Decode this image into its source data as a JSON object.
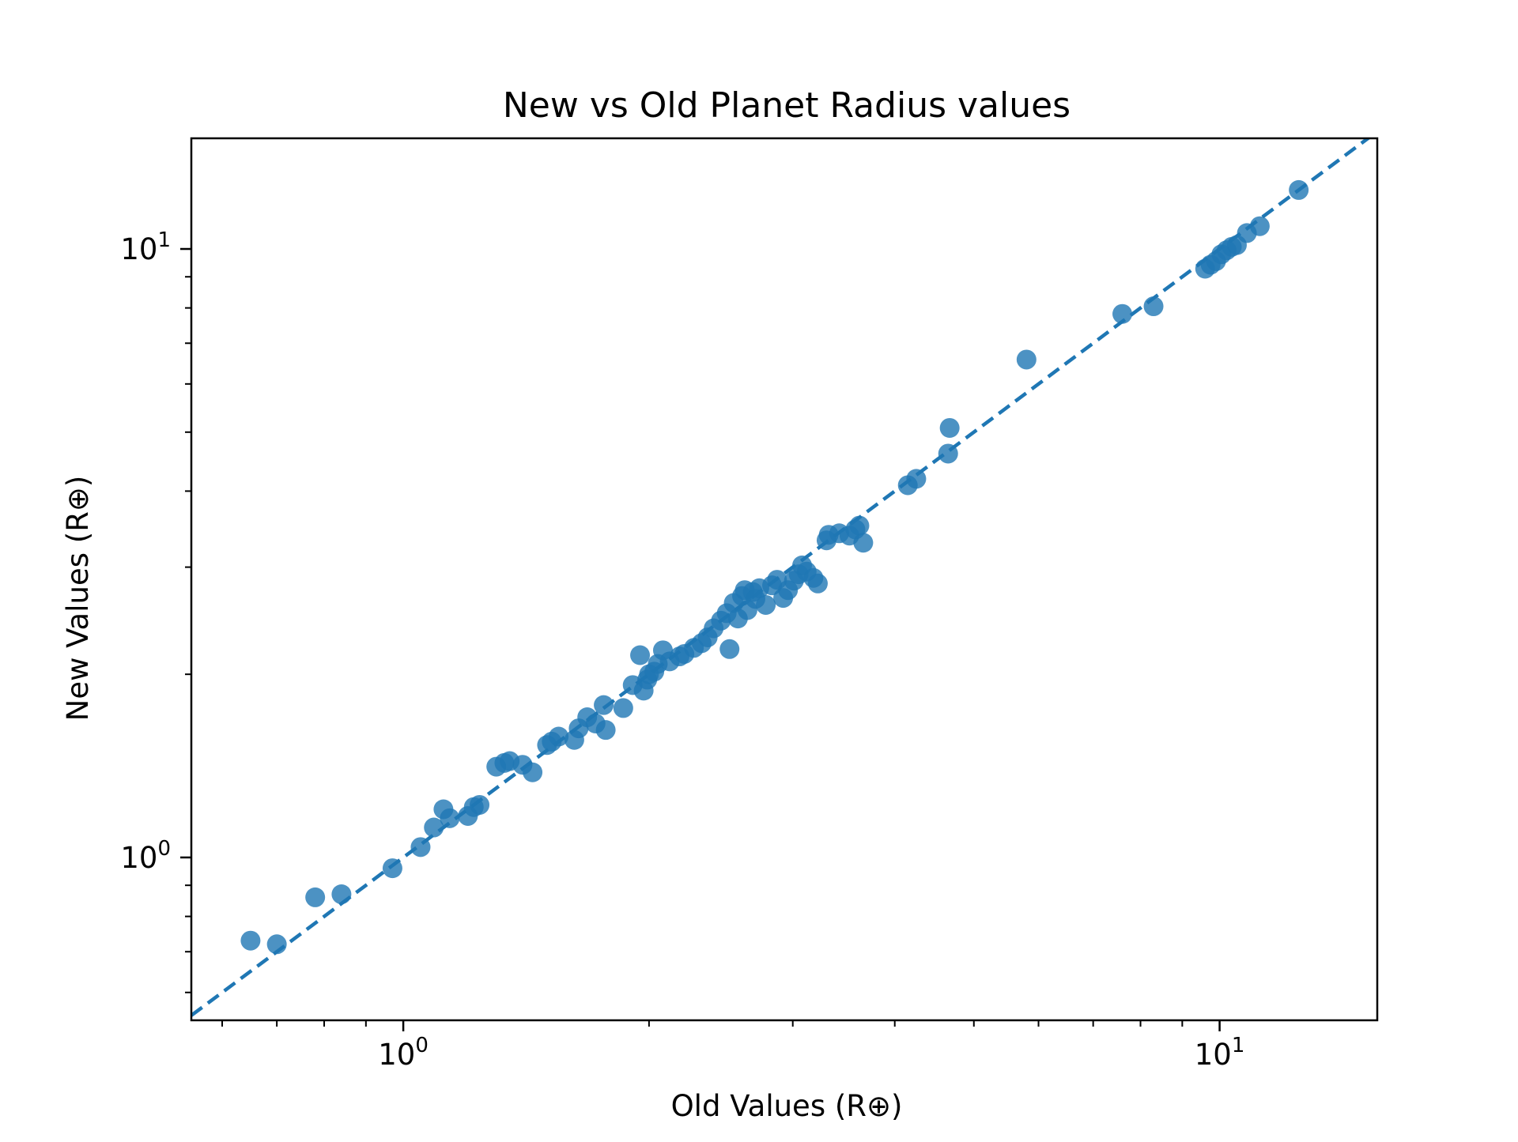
{
  "chart_data": {
    "type": "scatter",
    "title": "New vs Old Planet Radius values",
    "xlabel": "Old Values (R⊕)",
    "ylabel": "New Values (R⊕)",
    "xscale": "log",
    "yscale": "log",
    "xlim": [
      0.55,
      15.6
    ],
    "ylim": [
      0.54,
      15.2
    ],
    "xticks": [
      {
        "value": 1,
        "base": "10",
        "exp": "0"
      },
      {
        "value": 10,
        "base": "10",
        "exp": "1"
      }
    ],
    "yticks": [
      {
        "value": 1,
        "base": "10",
        "exp": "0"
      },
      {
        "value": 10,
        "base": "10",
        "exp": "1"
      }
    ],
    "grid": false,
    "colors": {
      "points": "#1f77b4",
      "reference_line": "#1f77b4"
    },
    "reference_line": {
      "style": "dashed",
      "slope": 1,
      "x": [
        0.55,
        15.6
      ]
    },
    "series": [
      {
        "x": [
          0.65,
          0.7,
          0.78,
          0.84,
          0.97,
          1.05,
          1.09,
          1.12,
          1.14,
          1.2,
          1.22,
          1.24,
          1.3,
          1.33,
          1.35,
          1.4,
          1.44,
          1.5,
          1.52,
          1.55,
          1.62,
          1.64,
          1.68,
          1.72,
          1.76,
          1.77,
          1.86,
          1.91,
          1.95,
          1.97,
          1.99,
          2.0,
          2.03,
          2.05,
          2.08,
          2.12,
          2.18,
          2.21,
          2.27,
          2.32,
          2.36,
          2.4,
          2.45,
          2.49,
          2.51,
          2.54,
          2.57,
          2.6,
          2.62,
          2.64,
          2.68,
          2.7,
          2.73,
          2.78,
          2.83,
          2.87,
          2.92,
          2.96,
          3.01,
          3.05,
          3.08,
          3.12,
          3.18,
          3.22,
          3.3,
          3.32,
          3.42,
          3.52,
          3.58,
          3.62,
          3.66,
          4.15,
          4.25,
          4.65,
          4.67,
          5.8,
          7.6,
          8.3,
          9.6,
          9.75,
          9.9,
          10.05,
          10.2,
          10.35,
          10.5,
          10.8,
          11.2,
          12.5
        ],
        "y": [
          0.73,
          0.72,
          0.86,
          0.87,
          0.96,
          1.04,
          1.12,
          1.2,
          1.16,
          1.17,
          1.21,
          1.22,
          1.41,
          1.43,
          1.44,
          1.42,
          1.38,
          1.53,
          1.55,
          1.58,
          1.56,
          1.63,
          1.7,
          1.66,
          1.78,
          1.62,
          1.76,
          1.92,
          2.15,
          1.88,
          1.96,
          2.0,
          2.02,
          2.08,
          2.19,
          2.1,
          2.14,
          2.16,
          2.21,
          2.25,
          2.3,
          2.38,
          2.45,
          2.52,
          2.2,
          2.62,
          2.47,
          2.69,
          2.75,
          2.55,
          2.73,
          2.66,
          2.77,
          2.6,
          2.8,
          2.86,
          2.67,
          2.75,
          2.85,
          2.92,
          3.02,
          2.95,
          2.88,
          2.82,
          3.32,
          3.39,
          3.41,
          3.38,
          3.46,
          3.51,
          3.29,
          4.09,
          4.19,
          4.61,
          5.08,
          6.58,
          7.82,
          8.05,
          9.28,
          9.42,
          9.55,
          9.8,
          9.95,
          10.08,
          10.15,
          10.62,
          10.9,
          12.5
        ]
      }
    ]
  }
}
